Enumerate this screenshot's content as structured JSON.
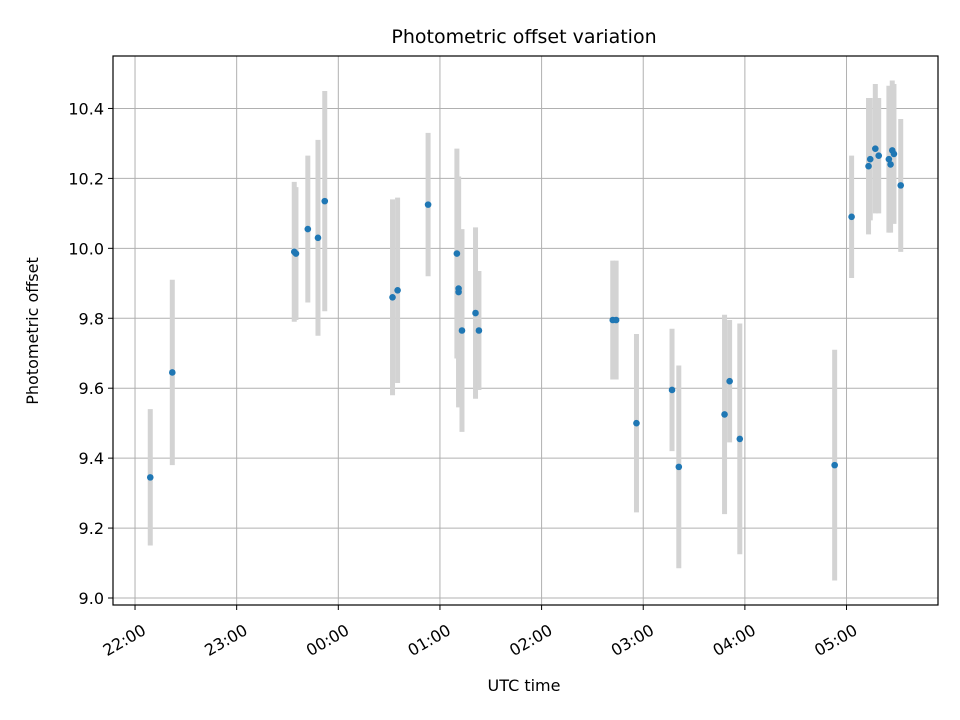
{
  "chart_data": {
    "type": "scatter",
    "title": "Photometric offset variation",
    "xlabel": "UTC time",
    "ylabel": "Photometric offset",
    "x_is_time": true,
    "x_ticks": [
      "22:00",
      "23:00",
      "00:00",
      "01:00",
      "02:00",
      "03:00",
      "04:00",
      "05:00"
    ],
    "y_ticks": [
      "9.0",
      "9.2",
      "9.4",
      "9.6",
      "9.8",
      "10.0",
      "10.2",
      "10.4"
    ],
    "xlim": [
      "21:47",
      "05:54"
    ],
    "ylim": [
      8.98,
      10.55
    ],
    "grid": true,
    "marker_color": "#1f77b4",
    "errorbar_color": "#d3d3d3",
    "points": [
      {
        "x": "22:09",
        "y": 9.345,
        "err": 0.195
      },
      {
        "x": "22:22",
        "y": 9.645,
        "err": 0.265
      },
      {
        "x": "23:34",
        "y": 9.99,
        "err": 0.2
      },
      {
        "x": "23:35",
        "y": 9.985,
        "err": 0.19
      },
      {
        "x": "23:42",
        "y": 10.055,
        "err": 0.21
      },
      {
        "x": "23:48",
        "y": 10.03,
        "err": 0.28
      },
      {
        "x": "23:52",
        "y": 10.135,
        "err": 0.315
      },
      {
        "x": "00:32",
        "y": 9.86,
        "err": 0.28
      },
      {
        "x": "00:35",
        "y": 9.88,
        "err": 0.265
      },
      {
        "x": "00:53",
        "y": 10.125,
        "err": 0.205
      },
      {
        "x": "01:10",
        "y": 9.985,
        "err": 0.3
      },
      {
        "x": "01:11",
        "y": 9.875,
        "err": 0.33
      },
      {
        "x": "01:11",
        "y": 9.885,
        "err": 0.32
      },
      {
        "x": "01:13",
        "y": 9.765,
        "err": 0.29
      },
      {
        "x": "01:21",
        "y": 9.815,
        "err": 0.245
      },
      {
        "x": "01:23",
        "y": 9.765,
        "err": 0.17
      },
      {
        "x": "02:42",
        "y": 9.795,
        "err": 0.17
      },
      {
        "x": "02:44",
        "y": 9.795,
        "err": 0.17
      },
      {
        "x": "02:56",
        "y": 9.5,
        "err": 0.255
      },
      {
        "x": "03:17",
        "y": 9.595,
        "err": 0.175
      },
      {
        "x": "03:21",
        "y": 9.375,
        "err": 0.29
      },
      {
        "x": "03:48",
        "y": 9.525,
        "err": 0.285
      },
      {
        "x": "03:51",
        "y": 9.62,
        "err": 0.175
      },
      {
        "x": "03:57",
        "y": 9.455,
        "err": 0.33
      },
      {
        "x": "04:53",
        "y": 9.38,
        "err": 0.33
      },
      {
        "x": "05:03",
        "y": 10.09,
        "err": 0.175
      },
      {
        "x": "05:13",
        "y": 10.235,
        "err": 0.195
      },
      {
        "x": "05:14",
        "y": 10.255,
        "err": 0.175
      },
      {
        "x": "05:17",
        "y": 10.285,
        "err": 0.185
      },
      {
        "x": "05:19",
        "y": 10.265,
        "err": 0.165
      },
      {
        "x": "05:25",
        "y": 10.255,
        "err": 0.21
      },
      {
        "x": "05:26",
        "y": 10.24,
        "err": 0.195
      },
      {
        "x": "05:27",
        "y": 10.28,
        "err": 0.2
      },
      {
        "x": "05:28",
        "y": 10.27,
        "err": 0.2
      },
      {
        "x": "05:32",
        "y": 10.18,
        "err": 0.19
      }
    ]
  }
}
